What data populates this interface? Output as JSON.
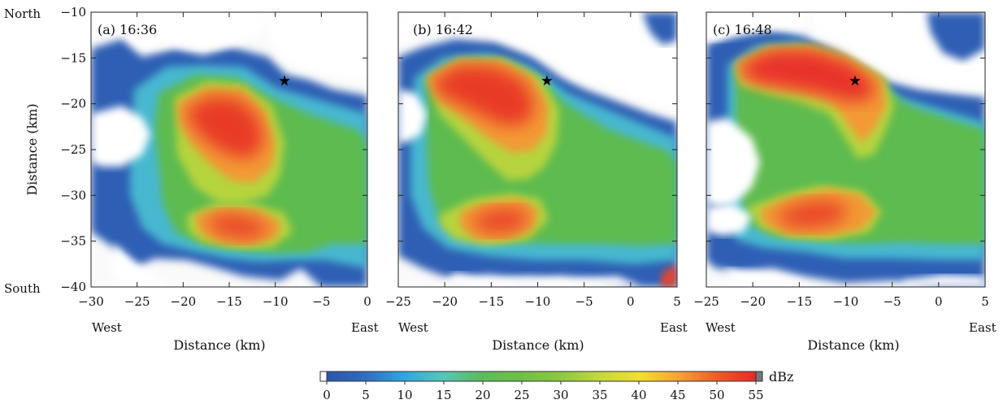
{
  "chart_data": {
    "type": "heatmap",
    "panels": [
      {
        "label": "(a) 16:36",
        "xlim": [
          -30,
          0
        ],
        "ylim": [
          -40,
          -10
        ],
        "xticks": [
          "-30",
          "-25",
          "-20",
          "-15",
          "-10",
          "-5",
          "0"
        ],
        "yticks": [
          "-10",
          "-15",
          "-20",
          "-25",
          "-30",
          "-35",
          "-40"
        ],
        "xlabel": "Distance (km)",
        "ylabel": "Distance (km)",
        "x_left_label": "West",
        "x_right_label": "East",
        "y_top_label": "North",
        "y_bottom_label": "South",
        "star": {
          "x": -9,
          "y": -17.5
        },
        "cores": [
          {
            "x": -15,
            "y": -21,
            "dbz": 53,
            "spread_km": 4.5
          },
          {
            "x": -13,
            "y": -33.5,
            "dbz": 51,
            "spread_km": 3.5
          }
        ]
      },
      {
        "label": "(b) 16:42",
        "xlim": [
          -25,
          5
        ],
        "ylim": [
          -40,
          -10
        ],
        "xticks": [
          "-25",
          "-20",
          "-15",
          "-10",
          "-5",
          "0",
          "5"
        ],
        "xlabel": "Distance (km)",
        "x_left_label": "West",
        "x_right_label": "East",
        "star": {
          "x": -9,
          "y": -17.5
        },
        "cores": [
          {
            "x": -16,
            "y": -20,
            "dbz": 53,
            "spread_km": 4.5
          },
          {
            "x": -15,
            "y": -33,
            "dbz": 50,
            "spread_km": 3.5
          }
        ]
      },
      {
        "label": "(c) 16:48",
        "xlim": [
          -25,
          5
        ],
        "ylim": [
          -40,
          -10
        ],
        "xticks": [
          "-25",
          "-20",
          "-15",
          "-10",
          "-5",
          "0",
          "5"
        ],
        "xlabel": "Distance (km)",
        "x_left_label": "West",
        "x_right_label": "East",
        "star": {
          "x": -9,
          "y": -17.5
        },
        "cores": [
          {
            "x": -12,
            "y": -17.5,
            "dbz": 54,
            "spread_km": 5
          },
          {
            "x": -13,
            "y": -32,
            "dbz": 49,
            "spread_km": 3.5
          }
        ]
      }
    ],
    "colorbar": {
      "unit": "dBz",
      "ticks": [
        "0",
        "5",
        "10",
        "15",
        "20",
        "25",
        "30",
        "35",
        "40",
        "45",
        "50",
        "55"
      ],
      "range": [
        0,
        55
      ],
      "colors": [
        "#ffffff",
        "#2a54a8",
        "#2f7fd0",
        "#2fbde8",
        "#56c6b0",
        "#5bbb4e",
        "#8fc93e",
        "#d6dc3a",
        "#f6dd2a",
        "#f59a35",
        "#e8452a",
        "#ee2a24"
      ]
    }
  }
}
